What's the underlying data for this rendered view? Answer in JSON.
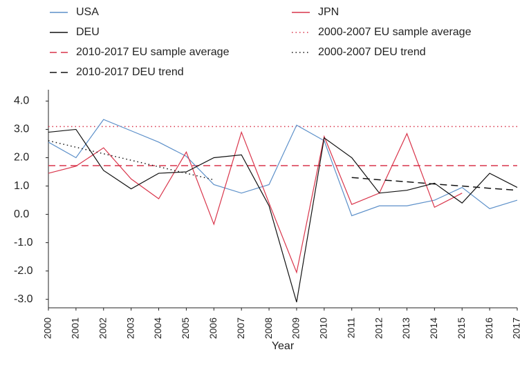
{
  "chart_data": {
    "type": "line",
    "x_label": "Year",
    "categories": [
      "2000",
      "2001",
      "2002",
      "2003",
      "2004",
      "2005",
      "2006",
      "2007",
      "2008",
      "2009",
      "2010",
      "2011",
      "2012",
      "2013",
      "2014",
      "2015",
      "2016",
      "2017"
    ],
    "series": [
      {
        "name": "USA",
        "color": "#5b8fc9",
        "dash": "solid",
        "values": [
          2.55,
          2.0,
          3.35,
          2.95,
          2.55,
          2.05,
          1.05,
          0.75,
          1.05,
          3.15,
          2.6,
          -0.05,
          0.3,
          0.3,
          0.5,
          0.95,
          0.2,
          0.5
        ]
      },
      {
        "name": "JPN",
        "color": "#d9344a",
        "dash": "solid",
        "values": [
          1.45,
          1.7,
          2.35,
          1.25,
          0.55,
          2.2,
          -0.35,
          2.9,
          0.4,
          -2.05,
          2.75,
          0.35,
          0.75,
          2.85,
          0.25,
          0.75,
          null,
          null
        ]
      },
      {
        "name": "DEU",
        "color": "#111111",
        "dash": "solid",
        "values": [
          2.9,
          3.0,
          1.55,
          0.9,
          1.45,
          1.5,
          2.0,
          2.1,
          0.3,
          -3.1,
          2.7,
          2.0,
          0.75,
          0.85,
          1.1,
          0.4,
          1.45,
          0.95
        ]
      },
      {
        "name": "2000-2007 DEU trend",
        "color": "#111111",
        "dash": "dotted",
        "values": [
          2.6,
          2.37,
          2.14,
          1.91,
          1.68,
          1.45,
          1.22,
          null,
          null,
          null,
          null,
          null,
          null,
          null,
          null,
          null,
          null,
          null
        ]
      },
      {
        "name": "2010-2017 DEU trend",
        "color": "#111111",
        "dash": "dashed",
        "values": [
          null,
          null,
          null,
          null,
          null,
          null,
          null,
          null,
          null,
          null,
          null,
          1.3,
          1.22,
          1.15,
          1.07,
          1.0,
          0.92,
          0.85
        ]
      }
    ],
    "reference_lines": [
      {
        "name": "2000-2007 EU sample average",
        "color": "#d9344a",
        "dash": "dotted",
        "value": 3.1
      },
      {
        "name": "2010-2017 EU sample average",
        "color": "#d9344a",
        "dash": "dashed",
        "value": 1.72
      }
    ],
    "ylim": [
      -3.3,
      4.4
    ],
    "yticks": [
      {
        "value": 4,
        "label": "4.0"
      },
      {
        "value": 3,
        "label": "3.0"
      },
      {
        "value": 2,
        "label": "2.0"
      },
      {
        "value": 1,
        "label": "1.0"
      },
      {
        "value": 0,
        "label": "0.0"
      },
      {
        "value": -1,
        "label": "-1.0"
      },
      {
        "value": -2,
        "label": "-2.0"
      },
      {
        "value": -3,
        "label": "-3.0"
      }
    ],
    "grid": false
  }
}
